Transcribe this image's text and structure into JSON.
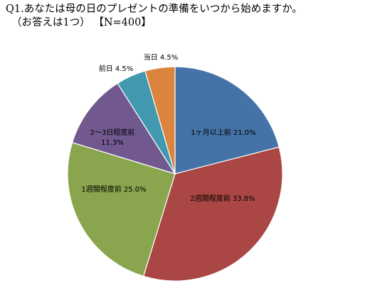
{
  "chart_data": {
    "type": "pie",
    "title_lines": [
      "Q1.あなたは母の日のプレゼントの準備をいつから始めますか。",
      "（お答えは1つ） 【N=400】"
    ],
    "slices": [
      {
        "label": "1ヶ月以上前",
        "value": 21.0,
        "display": "21.0%",
        "color": "#4572a7"
      },
      {
        "label": "2週間程度前",
        "value": 33.8,
        "display": "33.8%",
        "color": "#aa4643"
      },
      {
        "label": "1週間程度前",
        "value": 25.0,
        "display": "25.0%",
        "color": "#89a54e"
      },
      {
        "label": "2～3日程度前",
        "value": 11.3,
        "display": "11.3%",
        "color": "#71588f"
      },
      {
        "label": "前日",
        "value": 4.5,
        "display": "4.5%",
        "color": "#4198af"
      },
      {
        "label": "当日",
        "value": 4.5,
        "display": "4.5%",
        "color": "#db843d"
      }
    ],
    "start_angle": "12 o'clock",
    "direction": "clockwise",
    "legend": "none"
  }
}
